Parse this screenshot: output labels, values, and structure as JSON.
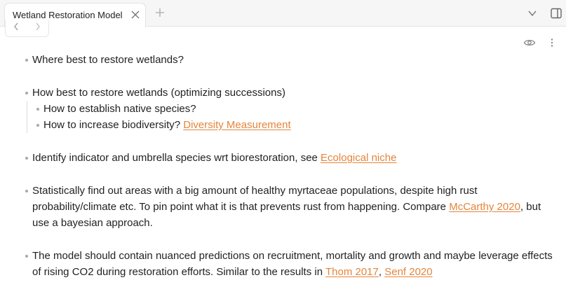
{
  "tab": {
    "title": "Wetland Restoration Model"
  },
  "bullets": {
    "b1": "Where best to restore wetlands?",
    "b2": "How best to restore wetlands (optimizing successions)",
    "b2a": "How to establish native species?",
    "b2b": "How to increase biodiversity?",
    "b2b_link": "Diversity Measurement",
    "b3": "Identify indicator and umbrella species wrt biorestoration, see",
    "b3_link": "Ecological niche",
    "b4": "Statistically find out areas with a big amount of healthy myrtaceae populations, despite high rust probability/climate etc. To pin point what it is that prevents rust from happening. Compare",
    "b4_link": "McCarthy 2020",
    "b4_tail": ", but use a bayesian approach.",
    "b5": "The model should contain nuanced predictions on recruitment, mortality and growth and maybe leverage effects of rising CO2 during restoration efforts. Similar to the results in",
    "b5_link1": "Thom 2017",
    "b5_sep": ",",
    "b5_link2": "Senf 2020"
  },
  "colors": {
    "link": "#e5843a",
    "bullet": "#a8a8a8"
  },
  "icons": [
    "close-icon",
    "plus-icon",
    "chevron-down-icon",
    "sidebar-toggle-icon",
    "chevron-left-icon",
    "chevron-right-icon",
    "eye-icon",
    "more-vertical-icon"
  ]
}
